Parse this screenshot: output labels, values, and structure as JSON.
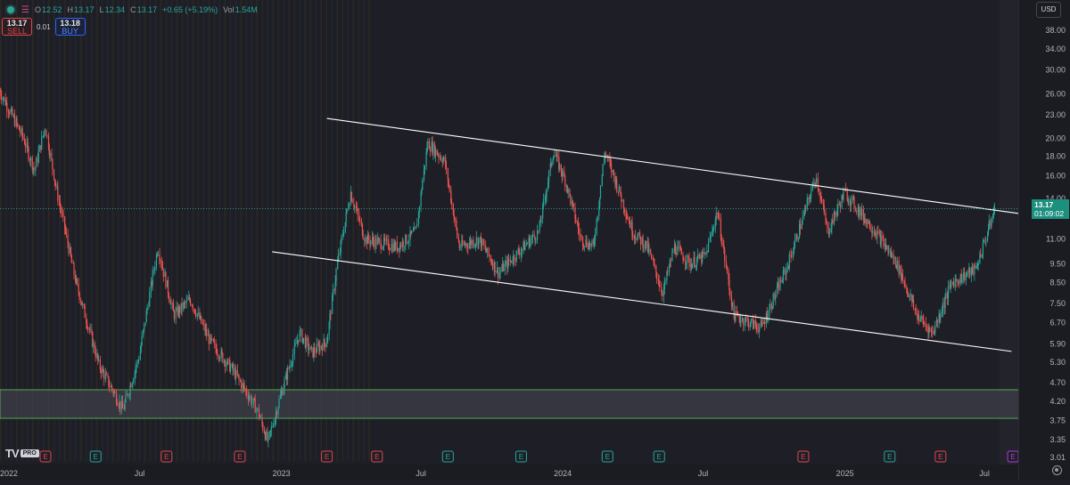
{
  "toolbar": {
    "ohlc": {
      "open_key": "O",
      "open": "12.52",
      "high_key": "H",
      "high": "13.17",
      "low_key": "L",
      "low": "12.34",
      "close_key": "C",
      "close": "13.17",
      "change": "+0.65 (+5.19%)",
      "vol_key": "Vol",
      "volume": "1.54M"
    },
    "sell_price": "13.17",
    "sell_label": "SELL",
    "spread": "0.01",
    "buy_price": "13.18",
    "buy_label": "BUY",
    "currency": "USD"
  },
  "price_badge": {
    "price": "13.17",
    "countdown": "01:09:02"
  },
  "logo": {
    "mark": "TV",
    "tag": "PRO"
  },
  "colors": {
    "up": "#26a69a",
    "down": "#ef5350",
    "background": "#1e1f26",
    "box": "#5cc15c",
    "channel": "#ffffff"
  },
  "chart_data": {
    "type": "candlestick",
    "scale": "log",
    "x_range": [
      "2022-01-01",
      "2025-08-15"
    ],
    "y_range": [
      2.95,
      44
    ],
    "y_ticks": [
      "38.00",
      "34.00",
      "30.00",
      "26.00",
      "23.00",
      "20.00",
      "18.00",
      "16.00",
      "14.00",
      "11.00",
      "9.50",
      "8.50",
      "7.50",
      "6.70",
      "5.90",
      "5.30",
      "4.70",
      "4.20",
      "3.75",
      "3.35",
      "3.01"
    ],
    "x_ticks": [
      {
        "label": "2022",
        "date": "2022-01-01"
      },
      {
        "label": "Jul",
        "date": "2022-07-01"
      },
      {
        "label": "2023",
        "date": "2023-01-01"
      },
      {
        "label": "Jul",
        "date": "2023-07-01"
      },
      {
        "label": "2024",
        "date": "2024-01-01"
      },
      {
        "label": "Jul",
        "date": "2024-07-01"
      },
      {
        "label": "2025",
        "date": "2025-01-01"
      },
      {
        "label": "Jul",
        "date": "2025-07-01"
      }
    ],
    "price_path": [
      [
        "2022-01-01",
        26.5
      ],
      [
        "2022-02-01",
        20.0
      ],
      [
        "2022-02-15",
        16.5
      ],
      [
        "2022-03-01",
        21.5
      ],
      [
        "2022-03-15",
        15.0
      ],
      [
        "2022-04-10",
        8.5
      ],
      [
        "2022-05-10",
        5.2
      ],
      [
        "2022-06-10",
        4.0
      ],
      [
        "2022-07-01",
        5.5
      ],
      [
        "2022-07-25",
        10.5
      ],
      [
        "2022-08-15",
        7.0
      ],
      [
        "2022-09-05",
        7.7
      ],
      [
        "2022-10-01",
        6.0
      ],
      [
        "2022-11-01",
        5.0
      ],
      [
        "2022-12-01",
        4.0
      ],
      [
        "2022-12-15",
        3.3
      ],
      [
        "2023-01-01",
        4.4
      ],
      [
        "2023-01-25",
        6.3
      ],
      [
        "2023-02-10",
        5.6
      ],
      [
        "2023-03-01",
        6.0
      ],
      [
        "2023-03-15",
        9.5
      ],
      [
        "2023-04-01",
        14.5
      ],
      [
        "2023-04-20",
        11.0
      ],
      [
        "2023-06-01",
        10.5
      ],
      [
        "2023-06-25",
        11.5
      ],
      [
        "2023-07-10",
        19.5
      ],
      [
        "2023-08-01",
        17.5
      ],
      [
        "2023-08-20",
        10.5
      ],
      [
        "2023-09-15",
        11.0
      ],
      [
        "2023-10-10",
        9.0
      ],
      [
        "2023-11-01",
        10.0
      ],
      [
        "2023-12-01",
        11.5
      ],
      [
        "2023-12-20",
        18.5
      ],
      [
        "2024-01-05",
        15.5
      ],
      [
        "2024-01-25",
        11.0
      ],
      [
        "2024-02-10",
        10.5
      ],
      [
        "2024-02-25",
        18.5
      ],
      [
        "2024-03-10",
        15.5
      ],
      [
        "2024-04-01",
        11.5
      ],
      [
        "2024-04-20",
        10.5
      ],
      [
        "2024-05-10",
        8.0
      ],
      [
        "2024-05-25",
        10.5
      ],
      [
        "2024-06-15",
        9.5
      ],
      [
        "2024-07-05",
        10.0
      ],
      [
        "2024-07-20",
        13.0
      ],
      [
        "2024-08-10",
        7.0
      ],
      [
        "2024-09-15",
        6.5
      ],
      [
        "2024-10-20",
        9.5
      ],
      [
        "2024-11-25",
        16.0
      ],
      [
        "2024-12-10",
        11.5
      ],
      [
        "2025-01-01",
        14.5
      ],
      [
        "2025-02-10",
        11.5
      ],
      [
        "2025-03-10",
        9.5
      ],
      [
        "2025-04-05",
        7.0
      ],
      [
        "2025-04-25",
        6.3
      ],
      [
        "2025-05-20",
        8.5
      ],
      [
        "2025-06-20",
        9.2
      ],
      [
        "2025-07-15",
        13.17
      ]
    ],
    "last_price": 13.17,
    "overlays": [
      {
        "kind": "trendline",
        "from": [
          "2023-03-01",
          22.5
        ],
        "to": [
          "2025-08-15",
          12.8
        ]
      },
      {
        "kind": "trendline",
        "from": [
          "2022-12-20",
          10.2
        ],
        "to": [
          "2025-08-05",
          5.65
        ]
      },
      {
        "kind": "zone",
        "from_date": "2022-01-01",
        "to_date": "2025-08-15",
        "y_low": 3.8,
        "y_high": 4.5
      }
    ],
    "event_markers": [
      {
        "label": "E",
        "date": "2022-03-01",
        "kind": "earnings"
      },
      {
        "label": "E",
        "date": "2022-05-05",
        "kind": "dividend"
      },
      {
        "label": "E",
        "date": "2022-08-05",
        "kind": "earnings"
      },
      {
        "label": "E",
        "date": "2022-11-08",
        "kind": "earnings"
      },
      {
        "label": "E",
        "date": "2023-03-01",
        "kind": "earnings"
      },
      {
        "label": "E",
        "date": "2023-05-05",
        "kind": "earnings"
      },
      {
        "label": "E",
        "date": "2023-08-05",
        "kind": "dividend"
      },
      {
        "label": "E",
        "date": "2023-11-08",
        "kind": "dividend"
      },
      {
        "label": "E",
        "date": "2024-02-28",
        "kind": "dividend"
      },
      {
        "label": "E",
        "date": "2024-05-05",
        "kind": "dividend"
      },
      {
        "label": "E",
        "date": "2024-11-08",
        "kind": "earnings"
      },
      {
        "label": "E",
        "date": "2025-02-28",
        "kind": "dividend"
      },
      {
        "label": "E",
        "date": "2025-05-05",
        "kind": "earnings"
      },
      {
        "label": "E",
        "date": "2025-08-07",
        "kind": "upcoming"
      }
    ]
  }
}
